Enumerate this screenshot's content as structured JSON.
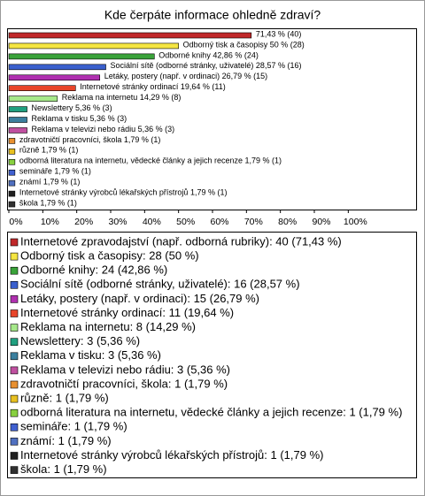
{
  "chart_data": {
    "type": "bar",
    "orientation": "horizontal",
    "title": "Kde čerpáte informace ohledně zdraví?",
    "categories": [
      "Internetové zpravodajství (např. odborná rubriky)",
      "Odborný tisk a časopisy",
      "Odborné knihy",
      "Sociální sítě (odborné stránky, uživatelé)",
      "Letáky, postery (např. v ordinaci)",
      "Internetové stránky ordinací",
      "Reklama na internetu",
      "Newslettery",
      "Reklama v tisku",
      "Reklama v televizi nebo rádiu",
      "zdravotničtí pracovníci, škola",
      "různě",
      "odborná literatura na internetu, vědecké články a jejich recenze",
      "semináře",
      "známí",
      "Internetové stránky výrobců lékařských přístrojů",
      "škola"
    ],
    "values": [
      71.43,
      50,
      42.86,
      28.57,
      26.79,
      19.64,
      14.29,
      5.36,
      5.36,
      5.36,
      1.79,
      1.79,
      1.79,
      1.79,
      1.79,
      1.79,
      1.79
    ],
    "value_labels": [
      "71,43 % (40)",
      "Odborný tisk a časopisy 50 % (28)",
      "Odborné knihy 42,86 % (24)",
      "Sociální sítě (odborné stránky, uživatelé) 28,57 % (16)",
      "Letáky, postery (např. v ordinaci) 26,79 % (15)",
      "Internetové stránky ordinací 19,64 % (11)",
      "Reklama na internetu 14,29 % (8)",
      "Newslettery 5,36 % (3)",
      "Reklama v tisku 5,36 % (3)",
      "Reklama v televizi nebo rádiu 5,36 % (3)",
      "zdravotničtí pracovníci, škola 1,79 % (1)",
      "různě 1,79 % (1)",
      "odborná literatura na internetu, vědecké články a jejich recenze 1,79 % (1)",
      "semináře 1,79 % (1)",
      "známí 1,79 % (1)",
      "Internetové stránky výrobců lékařských přístrojů 1,79 % (1)",
      "škola 1,79 % (1)"
    ],
    "legend_labels": [
      "Internetové zpravodajství (např. odborná rubriky): 40 (71,43 %)",
      "Odborný tisk a časopisy: 28 (50 %)",
      "Odborné knihy: 24 (42,86 %)",
      "Sociální sítě (odborné stránky, uživatelé): 16 (28,57 %)",
      "Letáky, postery (např. v ordinaci): 15 (26,79 %)",
      "Internetové stránky ordinací: 11 (19,64 %)",
      "Reklama na internetu: 8 (14,29 %)",
      "Newslettery: 3 (5,36 %)",
      "Reklama v tisku: 3 (5,36 %)",
      "Reklama v televizi nebo rádiu: 3 (5,36 %)",
      "zdravotničtí pracovníci, škola: 1 (1,79 %)",
      "různě: 1 (1,79 %)",
      "odborná literatura na internetu, vědecké články a jejich recenze: 1 (1,79 %)",
      "semináře: 1 (1,79 %)",
      "známí: 1 (1,79 %)",
      "Internetové stránky výrobců lékařských přístrojů: 1 (1,79 %)",
      "škola: 1 (1,79 %)"
    ],
    "colors": [
      "#c0282a",
      "#f5e642",
      "#3aa33a",
      "#3a5fcd",
      "#b030b0",
      "#e8452a",
      "#a6e88a",
      "#20a080",
      "#3b7f9e",
      "#c050a0",
      "#e89030",
      "#e8c020",
      "#88d040",
      "#4060d0",
      "#5070c0",
      "#202020",
      "#303030"
    ],
    "xlim": [
      0,
      120
    ],
    "xticks": [
      {
        "value": 0,
        "label": "0%"
      },
      {
        "value": 10,
        "label": "10%"
      },
      {
        "value": 20,
        "label": "20%"
      },
      {
        "value": 30,
        "label": "30%"
      },
      {
        "value": 40,
        "label": "40%"
      },
      {
        "value": 50,
        "label": "50%"
      },
      {
        "value": 60,
        "label": "60%"
      },
      {
        "value": 70,
        "label": "70%"
      },
      {
        "value": 80,
        "label": "80%"
      },
      {
        "value": 90,
        "label": "90%"
      },
      {
        "value": 100,
        "label": "100%"
      }
    ],
    "grid": false
  }
}
